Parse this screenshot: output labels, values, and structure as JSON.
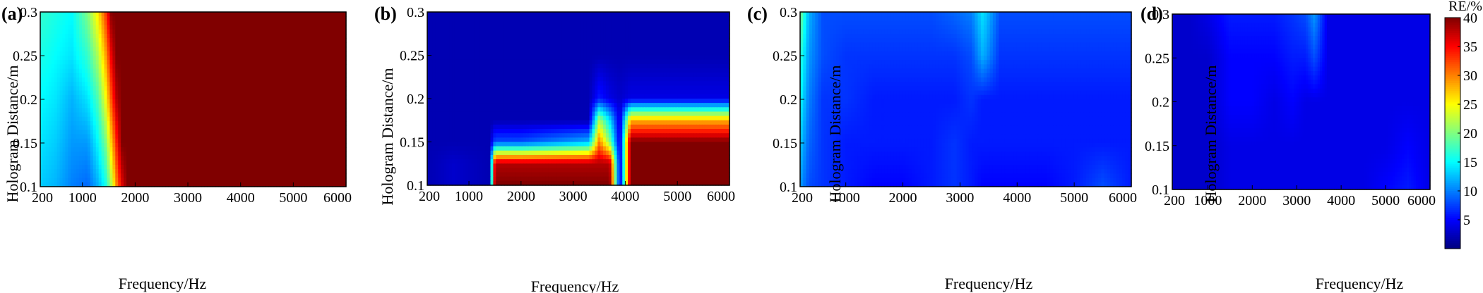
{
  "chart_data": [
    {
      "type": "heatmap",
      "panel": "(a)",
      "xlabel": "Frequency/Hz",
      "ylabel": "Hologram Distance/m",
      "xlim": [
        200,
        6000
      ],
      "ylim": [
        0.1,
        0.3
      ],
      "xticks": [
        "200",
        "1000",
        "2000",
        "3000",
        "4000",
        "5000",
        "6000"
      ],
      "yticks": [
        "0.1",
        "0.15",
        "0.2",
        "0.25",
        "0.3"
      ],
      "x": [
        200,
        500,
        800,
        1100,
        1300,
        1450,
        1550,
        1650,
        1750,
        1850,
        1950,
        2100,
        2400,
        3000,
        4000,
        5000,
        6000
      ],
      "y": [
        0.1,
        0.15,
        0.2,
        0.25,
        0.3
      ],
      "z": [
        [
          13,
          12,
          10,
          9,
          12,
          16,
          22,
          30,
          36,
          40,
          40,
          40,
          40,
          40,
          40,
          40,
          40
        ],
        [
          14,
          13,
          11,
          11,
          15,
          20,
          27,
          34,
          40,
          40,
          40,
          40,
          40,
          40,
          40,
          40,
          40
        ],
        [
          15,
          14,
          12,
          14,
          18,
          25,
          32,
          38,
          40,
          40,
          40,
          40,
          40,
          40,
          40,
          40,
          40
        ],
        [
          16,
          15,
          14,
          17,
          22,
          29,
          36,
          40,
          40,
          40,
          40,
          40,
          40,
          40,
          40,
          40,
          40
        ],
        [
          17,
          16,
          15,
          20,
          26,
          33,
          40,
          40,
          40,
          40,
          40,
          40,
          40,
          40,
          40,
          40,
          40
        ]
      ]
    },
    {
      "type": "heatmap",
      "panel": "(b)",
      "xlabel": "Frequency/Hz",
      "ylabel": "Hologram Distance/m",
      "xlim": [
        200,
        6000
      ],
      "ylim": [
        0.1,
        0.3
      ],
      "xticks": [
        "200",
        "1000",
        "2000",
        "3000",
        "4000",
        "5000",
        "6000"
      ],
      "yticks": [
        "0.1",
        "0.15",
        "0.2",
        "0.25",
        "0.3"
      ],
      "x": [
        200,
        700,
        1400,
        1500,
        2000,
        3300,
        3500,
        3700,
        3900,
        4100,
        4300,
        5000,
        6000
      ],
      "y": [
        0.1,
        0.125,
        0.15,
        0.175,
        0.2,
        0.25,
        0.3
      ],
      "z": [
        [
          2,
          3,
          2,
          40,
          40,
          40,
          40,
          40,
          3,
          40,
          40,
          40,
          40
        ],
        [
          2,
          3,
          2,
          38,
          38,
          38,
          38,
          38,
          3,
          40,
          40,
          40,
          40
        ],
        [
          2,
          2,
          2,
          8,
          8,
          12,
          30,
          20,
          3,
          40,
          40,
          40,
          40
        ],
        [
          2,
          2,
          2,
          2,
          2,
          2,
          22,
          14,
          3,
          28,
          28,
          28,
          28
        ],
        [
          2,
          2,
          2,
          2,
          2,
          2,
          6,
          4,
          3,
          4,
          4,
          4,
          4
        ],
        [
          2,
          2,
          2,
          2,
          2,
          2,
          2,
          2,
          2,
          2,
          2,
          2,
          2
        ],
        [
          2,
          2,
          2,
          2,
          2,
          2,
          2,
          2,
          2,
          2,
          2,
          2,
          2
        ]
      ]
    },
    {
      "type": "heatmap",
      "panel": "(c)",
      "xlabel": "Frequency/Hz",
      "ylabel": "Hologram Distance/m",
      "xlim": [
        200,
        6000
      ],
      "ylim": [
        0.1,
        0.3
      ],
      "xticks": [
        "200",
        "1000",
        "2000",
        "3000",
        "4000",
        "5000",
        "6000"
      ],
      "yticks": [
        "0.1",
        "0.15",
        "0.2",
        "0.25",
        "0.3"
      ],
      "x": [
        200,
        350,
        600,
        1000,
        1500,
        2000,
        2500,
        2900,
        3200,
        3400,
        3700,
        4500,
        5000,
        5500,
        6000
      ],
      "y": [
        0.1,
        0.15,
        0.2,
        0.25,
        0.3
      ],
      "z": [
        [
          11,
          8,
          7,
          6,
          5,
          5,
          6,
          7,
          6,
          5,
          5,
          5,
          6,
          8,
          6
        ],
        [
          13,
          9,
          7,
          6,
          6,
          6,
          6,
          7,
          6,
          6,
          6,
          6,
          6,
          6,
          6
        ],
        [
          15,
          10,
          7,
          7,
          6,
          6,
          6,
          6,
          7,
          6,
          6,
          6,
          6,
          6,
          6
        ],
        [
          17,
          11,
          8,
          7,
          7,
          7,
          7,
          7,
          8,
          12,
          7,
          7,
          7,
          7,
          7
        ],
        [
          20,
          12,
          8,
          8,
          8,
          8,
          8,
          9,
          10,
          14,
          8,
          8,
          8,
          8,
          8
        ]
      ]
    },
    {
      "type": "heatmap",
      "panel": "(d)",
      "xlabel": "Frequency/Hz",
      "ylabel": "Hologram Distance/m",
      "xlim": [
        200,
        6000
      ],
      "ylim": [
        0.1,
        0.3
      ],
      "xticks": [
        "200",
        "1000",
        "2000",
        "3000",
        "4000",
        "5000",
        "6000"
      ],
      "yticks": [
        "0.1",
        "0.15",
        "0.2",
        "0.25",
        "0.3"
      ],
      "x": [
        200,
        600,
        1000,
        1500,
        2000,
        2500,
        2900,
        3200,
        3400,
        3700,
        4500,
        5000,
        5500,
        6000
      ],
      "y": [
        0.1,
        0.15,
        0.2,
        0.25,
        0.3
      ],
      "z": [
        [
          3,
          3,
          3,
          4,
          4,
          4,
          4,
          4,
          4,
          4,
          4,
          5,
          6,
          4
        ],
        [
          3,
          3,
          3,
          4,
          4,
          4,
          4,
          4,
          4,
          4,
          4,
          4,
          5,
          4
        ],
        [
          3,
          3,
          3,
          5,
          5,
          4,
          5,
          4,
          4,
          4,
          4,
          4,
          4,
          4
        ],
        [
          3,
          3,
          3,
          5,
          5,
          5,
          6,
          6,
          8,
          4,
          4,
          4,
          4,
          4
        ],
        [
          3,
          3,
          4,
          6,
          6,
          6,
          7,
          8,
          11,
          4,
          4,
          4,
          4,
          4
        ]
      ]
    }
  ],
  "colorbar": {
    "title": "RE/%",
    "range": [
      0,
      40
    ],
    "ticks": [
      "5",
      "10",
      "15",
      "20",
      "25",
      "30",
      "35",
      "40"
    ],
    "colormap": "jet"
  }
}
